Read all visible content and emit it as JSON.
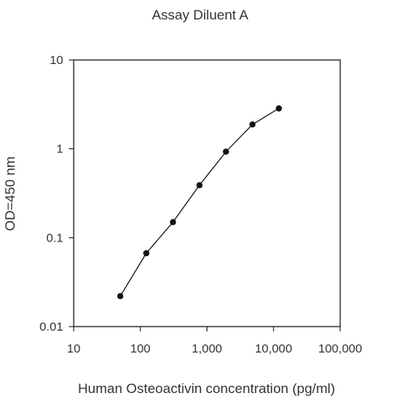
{
  "chart_data": {
    "type": "line",
    "title": "Assay Diluent A",
    "xlabel": "Human Osteoactivin concentration (pg/ml)",
    "ylabel": "OD=450 nm",
    "xscale": "log",
    "yscale": "log",
    "xlim": [
      10,
      100000
    ],
    "ylim": [
      0.01,
      10
    ],
    "xticks": [
      10,
      100,
      1000,
      10000,
      100000
    ],
    "xtick_labels": [
      "10",
      "100",
      "1,000",
      "10,000",
      "100,000"
    ],
    "yticks": [
      0.01,
      0.1,
      1,
      10
    ],
    "ytick_labels": [
      "0.01",
      "0.1",
      "1",
      "10"
    ],
    "grid": false,
    "series": [
      {
        "x": [
          50,
          123,
          309,
          772,
          1930,
          4823,
          12000
        ],
        "y": [
          0.022,
          0.067,
          0.15,
          0.39,
          0.93,
          1.88,
          2.85
        ],
        "color": "#111111",
        "marker": "circle"
      }
    ]
  }
}
